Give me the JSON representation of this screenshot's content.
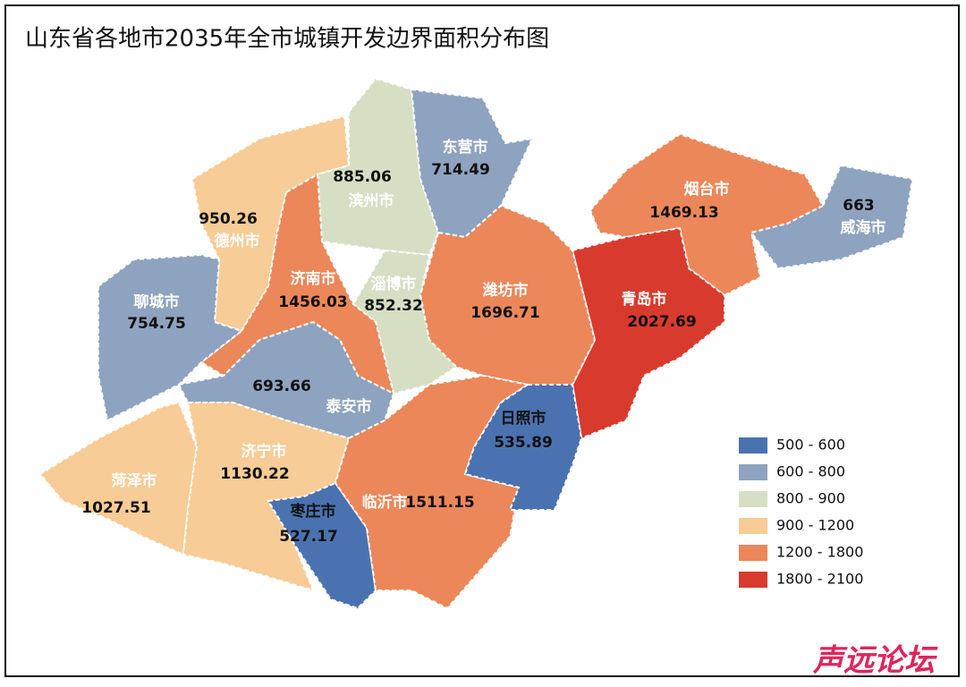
{
  "title": "山东省各地市2035年全市城镇开发边界面积分布图",
  "regions": [
    {
      "name": "德州市",
      "value": 950.26
    },
    {
      "name": "滨州市",
      "value": 885.06
    },
    {
      "name": "东营市",
      "value": 714.49
    },
    {
      "name": "烟台市",
      "value": 1469.13
    },
    {
      "name": "威海市",
      "value": 663
    },
    {
      "name": "青岛市",
      "value": 2027.69
    },
    {
      "name": "潍坊市",
      "value": 1696.71
    },
    {
      "name": "淄博市",
      "value": 852.32
    },
    {
      "name": "济南市",
      "value": 1456.03
    },
    {
      "name": "聊城市",
      "value": 754.75
    },
    {
      "name": "泰安市",
      "value": 693.66
    },
    {
      "name": "菏泽市",
      "value": 1027.51
    },
    {
      "name": "济宁市",
      "value": 1130.22
    },
    {
      "name": "枣庄市",
      "value": 527.17
    },
    {
      "name": "临沂市",
      "value": 1511.15
    },
    {
      "name": "日照市",
      "value": 535.89
    }
  ],
  "legend": [
    {
      "label": "500 - 600",
      "range": [
        500,
        600
      ],
      "color": "#4a72b0"
    },
    {
      "label": "600 - 800",
      "range": [
        600,
        800
      ],
      "color": "#8ea3bf"
    },
    {
      "label": "800 - 900",
      "range": [
        800,
        900
      ],
      "color": "#d6dfc4"
    },
    {
      "label": "900 - 1200",
      "range": [
        900,
        1200
      ],
      "color": "#f7cc96"
    },
    {
      "label": "1200 - 1800",
      "range": [
        1200,
        1800
      ],
      "color": "#ec8759"
    },
    {
      "label": "1800 - 2100",
      "range": [
        1800,
        2100
      ],
      "color": "#d93a2e"
    }
  ],
  "watermark": "声远论坛"
}
